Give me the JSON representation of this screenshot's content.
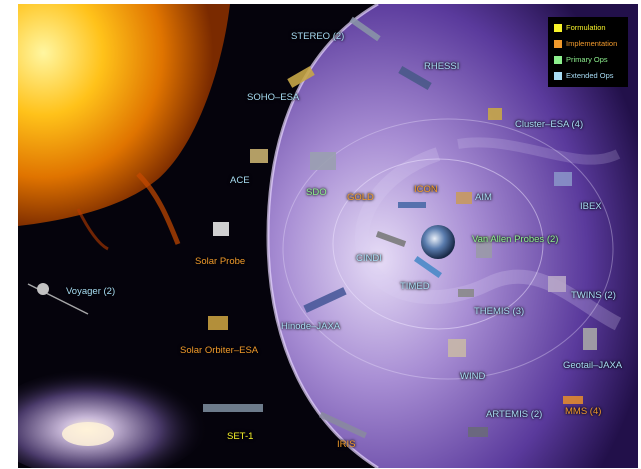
{
  "colors": {
    "formulation": "#f7f32a",
    "implementation": "#f0992c",
    "primary_ops": "#8ef08e",
    "extended_ops": "#a8dcf4",
    "space": "#05030c",
    "magnetosphere": "#6a4ca8"
  },
  "legend": {
    "items": [
      {
        "label": "Formulation",
        "color": "#f7f32a"
      },
      {
        "label": "Implementation",
        "color": "#f0992c"
      },
      {
        "label": "Primary Ops",
        "color": "#8ef08e"
      },
      {
        "label": "Extended Ops",
        "color": "#a8dcf4"
      }
    ]
  },
  "missions": {
    "stereo": {
      "label": "STEREO (2)",
      "status": "extended_ops"
    },
    "rhessi": {
      "label": "RHESSI",
      "status": "extended_ops"
    },
    "soho": {
      "label": "SOHO–ESA",
      "status": "extended_ops"
    },
    "cluster": {
      "label": "Cluster–ESA (4)",
      "status": "extended_ops"
    },
    "ace": {
      "label": "ACE",
      "status": "extended_ops"
    },
    "sdo": {
      "label": "SDO",
      "status": "primary_ops"
    },
    "gold": {
      "label": "GOLD",
      "status": "implementation"
    },
    "icon": {
      "label": "ICON",
      "status": "implementation"
    },
    "aim": {
      "label": "AIM",
      "status": "extended_ops"
    },
    "ibex": {
      "label": "IBEX",
      "status": "extended_ops"
    },
    "solar_probe": {
      "label": "Solar Probe",
      "status": "implementation"
    },
    "cindi": {
      "label": "CINDI",
      "status": "extended_ops"
    },
    "van_allen": {
      "label": "Van Allen Probes (2)",
      "status": "primary_ops"
    },
    "voyager": {
      "label": "Voyager (2)",
      "status": "extended_ops"
    },
    "timed": {
      "label": "TIMED",
      "status": "extended_ops"
    },
    "twins": {
      "label": "TWINS (2)",
      "status": "extended_ops"
    },
    "hinode": {
      "label": "Hinode–JAXA",
      "status": "extended_ops"
    },
    "themis": {
      "label": "THEMIS (3)",
      "status": "extended_ops"
    },
    "solar_orbiter": {
      "label": "Solar Orbiter–ESA",
      "status": "implementation"
    },
    "geotail": {
      "label": "Geotail–JAXA",
      "status": "extended_ops"
    },
    "wind": {
      "label": "WIND",
      "status": "extended_ops"
    },
    "mms": {
      "label": "MMS (4)",
      "status": "implementation"
    },
    "artemis": {
      "label": "ARTEMIS (2)",
      "status": "extended_ops"
    },
    "set1": {
      "label": "SET-1",
      "status": "formulation"
    },
    "iris": {
      "label": "IRIS",
      "status": "implementation"
    }
  }
}
